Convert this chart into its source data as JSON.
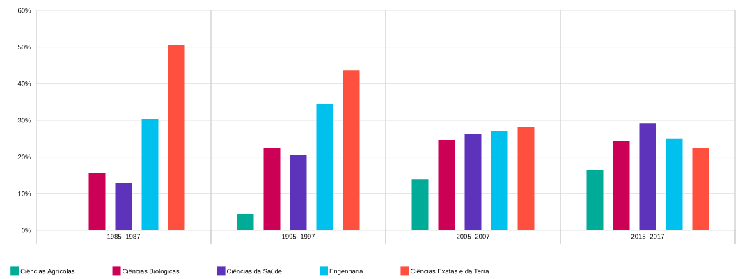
{
  "chart_data": {
    "type": "bar",
    "categories": [
      "1985 -1987",
      "1995 -1997",
      "2005 -2007",
      "2015 -2017"
    ],
    "series": [
      {
        "name": "Ciências Agrícolas",
        "color": "#00ab97",
        "values": [
          null,
          4.4,
          14.0,
          16.5
        ]
      },
      {
        "name": "Ciências Biológicas",
        "color": "#cc0055",
        "values": [
          15.7,
          22.6,
          24.7,
          24.3
        ]
      },
      {
        "name": "Ciências da Saúde",
        "color": "#5e33bb",
        "values": [
          12.9,
          20.5,
          26.4,
          29.2
        ]
      },
      {
        "name": "Engenharia",
        "color": "#00c0ee",
        "values": [
          30.4,
          34.5,
          27.1,
          24.9
        ]
      },
      {
        "name": "Ciências Exatas e da Terra",
        "color": "#ff4f3f",
        "values": [
          50.7,
          43.6,
          28.1,
          22.4
        ]
      }
    ],
    "ylim": [
      0,
      60
    ],
    "yticks": [
      {
        "value": 0,
        "label": "0%"
      },
      {
        "value": 10,
        "label": "10%"
      },
      {
        "value": 20,
        "label": "20%"
      },
      {
        "value": 30,
        "label": "30%"
      },
      {
        "value": 40,
        "label": "40%"
      },
      {
        "value": 50,
        "label": "50%"
      },
      {
        "value": 60,
        "label": "60%"
      }
    ],
    "grid": true,
    "legend": "bottom"
  }
}
